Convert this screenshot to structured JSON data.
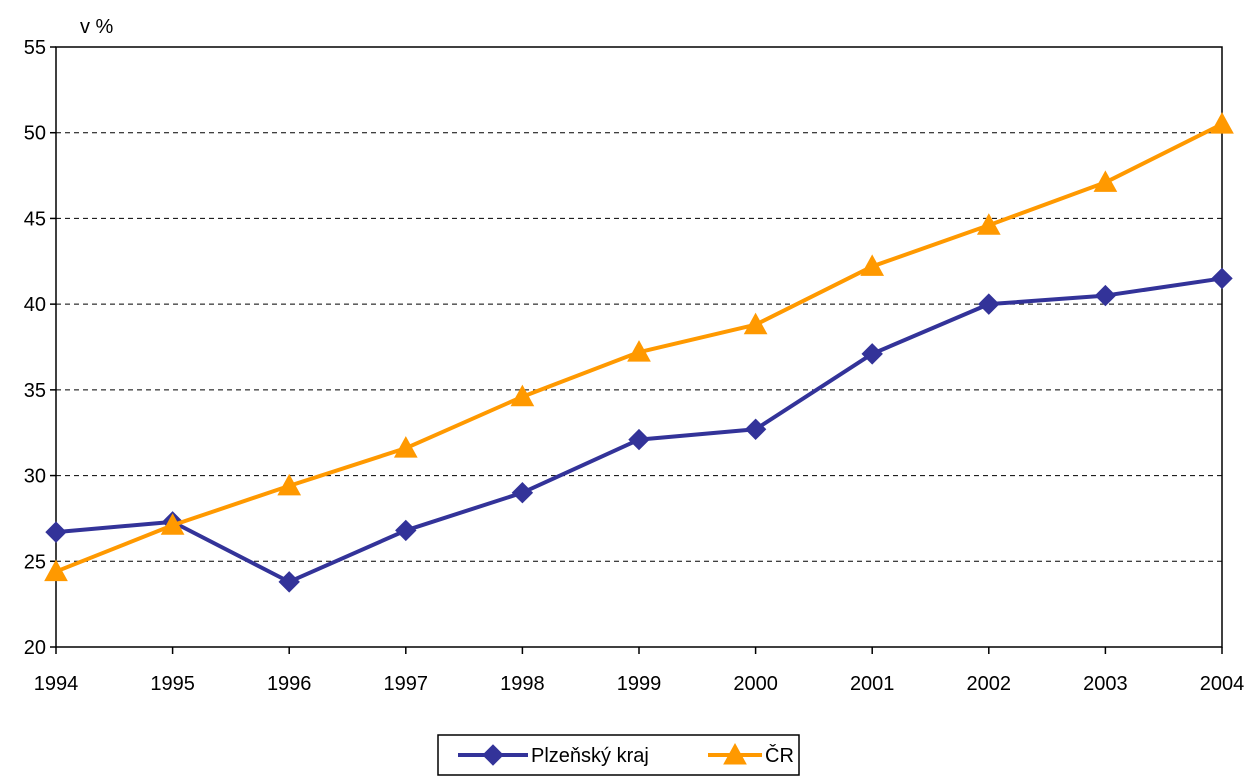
{
  "chart_data": {
    "type": "line",
    "title": "",
    "xlabel": "",
    "ylabel": "v %",
    "x": [
      1994,
      1995,
      1996,
      1997,
      1998,
      1999,
      2000,
      2001,
      2002,
      2003,
      2004
    ],
    "ylim": [
      20,
      55
    ],
    "yticks": [
      20,
      25,
      30,
      35,
      40,
      45,
      50,
      55
    ],
    "grid": true,
    "legend_position": "bottom",
    "series": [
      {
        "name": "Plzeňský kraj",
        "marker": "diamond",
        "color": "#333399",
        "values": [
          26.7,
          27.3,
          23.8,
          26.8,
          29.0,
          32.1,
          32.7,
          37.1,
          40.0,
          40.5,
          41.5
        ]
      },
      {
        "name": "ČR",
        "marker": "triangle",
        "color": "#FF9900",
        "values": [
          24.4,
          27.1,
          29.4,
          31.6,
          34.6,
          37.2,
          38.8,
          42.2,
          44.6,
          47.1,
          50.5
        ]
      }
    ]
  }
}
